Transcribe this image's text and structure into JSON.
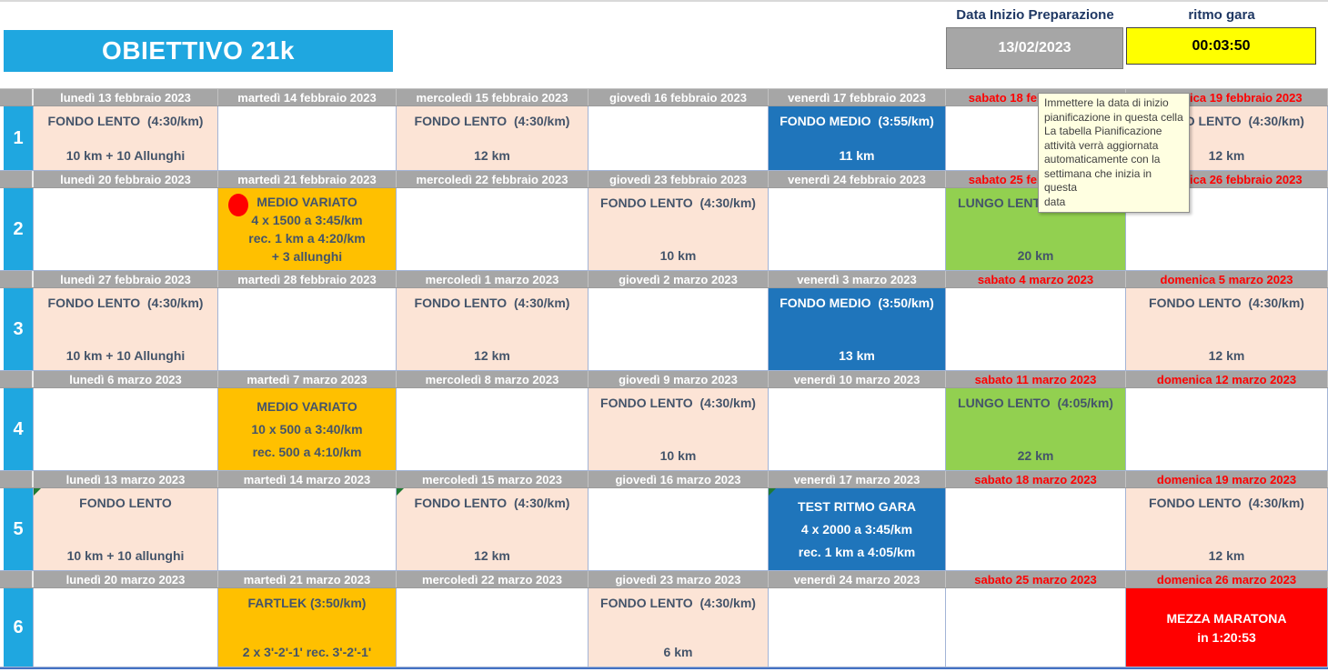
{
  "header": {
    "title": "OBIETTIVO 21k",
    "prep_date_label": "Data Inizio Preparazione",
    "prep_date_value": "13/02/2023",
    "race_pace_label": "ritmo gara",
    "race_pace_value": "00:03:50"
  },
  "tooltip_text": "Immettere la data di inizio\npianificazione in questa cella\nLa tabella Pianificazione\nattività verrà aggiornata\nautomaticamente con la\nsettimana che inizia in questa\ndata",
  "colors": {
    "accent_cyan": "#1FA7E0",
    "header_gray": "#A6A6A6",
    "weekend_red": "#FF0000",
    "fondo_lento_peach": "#FCE4D6",
    "fondo_medio_blue": "#1F75BB",
    "variato_orange": "#FFC000",
    "lungo_lento_green": "#92D050",
    "race_red": "#FF0000",
    "pace_yellow": "#FFFF00",
    "cell_text": "#44546A"
  },
  "weeks": [
    {
      "number": "1",
      "days": [
        "lunedì 13 febbraio 2023",
        "martedì 14 febbraio 2023",
        "mercoledì 15 febbraio 2023",
        "giovedì 16 febbraio 2023",
        "venerdì 17 febbraio 2023",
        "sabato 18 febbraio 2023",
        "domenica 19 febbraio 2023"
      ],
      "activities": [
        {
          "style": "peach",
          "lines": [
            "FONDO LENTO  (4:30/km)",
            "10 km + 10 Allunghi"
          ]
        },
        null,
        {
          "style": "peach",
          "lines": [
            "FONDO LENTO  (4:30/km)",
            "12 km"
          ]
        },
        null,
        {
          "style": "blue",
          "lines": [
            "FONDO MEDIO  (3:55/km)",
            "11 km"
          ]
        },
        null,
        {
          "style": "peach",
          "lines": [
            "FONDO LENTO  (4:30/km)",
            "12 km"
          ]
        }
      ]
    },
    {
      "number": "2",
      "days": [
        "lunedì 20 febbraio 2023",
        "martedì 21 febbraio 2023",
        "mercoledì 22 febbraio 2023",
        "giovedì 23 febbraio 2023",
        "venerdì 24 febbraio 2023",
        "sabato 25 febbraio 2023",
        "domenica 26 febbraio 2023"
      ],
      "activities": [
        null,
        {
          "style": "orange",
          "marker": "red-dot",
          "lines": [
            "MEDIO VARIATO",
            "4 x 1500 a 3:45/km",
            "rec. 1 km a 4:20/km",
            "+ 3 allunghi"
          ]
        },
        null,
        {
          "style": "peach",
          "lines": [
            "FONDO LENTO  (4:30/km)",
            "10 km"
          ]
        },
        null,
        {
          "style": "green",
          "lines": [
            "LUNGO LENTO  (4:10/km)",
            "20 km"
          ]
        },
        null
      ]
    },
    {
      "number": "3",
      "days": [
        "lunedì 27 febbraio 2023",
        "martedì 28 febbraio 2023",
        "mercoledì 1 marzo 2023",
        "giovedì 2 marzo 2023",
        "venerdì 3 marzo 2023",
        "sabato 4 marzo 2023",
        "domenica 5 marzo 2023"
      ],
      "activities": [
        {
          "style": "peach",
          "lines": [
            "FONDO LENTO  (4:30/km)",
            "10 km + 10 Allunghi"
          ]
        },
        null,
        {
          "style": "peach",
          "lines": [
            "FONDO LENTO  (4:30/km)",
            "12 km"
          ]
        },
        null,
        {
          "style": "blue",
          "lines": [
            "FONDO MEDIO  (3:50/km)",
            "13 km"
          ]
        },
        null,
        {
          "style": "peach",
          "lines": [
            "FONDO LENTO  (4:30/km)",
            "12 km"
          ]
        }
      ]
    },
    {
      "number": "4",
      "days": [
        "lunedì 6 marzo 2023",
        "martedì 7 marzo 2023",
        "mercoledì 8 marzo 2023",
        "giovedì 9 marzo 2023",
        "venerdì 10 marzo 2023",
        "sabato 11 marzo 2023",
        "domenica 12 marzo 2023"
      ],
      "activities": [
        null,
        {
          "style": "orange",
          "lines": [
            "MEDIO VARIATO",
            "10 x 500 a 3:40/km",
            "rec. 500 a 4:10/km"
          ]
        },
        null,
        {
          "style": "peach",
          "lines": [
            "FONDO LENTO  (4:30/km)",
            "10 km"
          ]
        },
        null,
        {
          "style": "green",
          "lines": [
            "LUNGO LENTO  (4:05/km)",
            "22 km"
          ]
        },
        null
      ]
    },
    {
      "number": "5",
      "days": [
        "lunedì 13 marzo 2023",
        "martedì 14 marzo 2023",
        "mercoledì 15 marzo 2023",
        "giovedì 16 marzo 2023",
        "venerdì 17 marzo 2023",
        "sabato 18 marzo 2023",
        "domenica 19 marzo 2023"
      ],
      "activities": [
        {
          "style": "peach",
          "marker": "green-flag",
          "lines": [
            "FONDO LENTO",
            "10 km + 10 allunghi"
          ]
        },
        null,
        {
          "style": "peach",
          "marker": "green-flag",
          "lines": [
            "FONDO LENTO  (4:30/km)",
            "12 km"
          ]
        },
        null,
        {
          "style": "blue",
          "marker": "green-flag",
          "lines": [
            "TEST RITMO GARA",
            "4 x 2000 a 3:45/km",
            "rec. 1 km a 4:05/km"
          ]
        },
        null,
        {
          "style": "peach",
          "lines": [
            "FONDO LENTO  (4:30/km)",
            "12 km"
          ]
        }
      ]
    },
    {
      "number": "6",
      "days": [
        "lunedì 20 marzo 2023",
        "martedì 21 marzo 2023",
        "mercoledì 22 marzo 2023",
        "giovedì 23 marzo 2023",
        "venerdì 24 marzo 2023",
        "sabato 25 marzo 2023",
        "domenica 26 marzo 2023"
      ],
      "activities": [
        null,
        {
          "style": "orange",
          "lines": [
            "FARTLEK (3:50/km)",
            "2 x 3'-2'-1' rec. 3'-2'-1'"
          ]
        },
        null,
        {
          "style": "peach",
          "lines": [
            "FONDO LENTO  (4:30/km)",
            "6 km"
          ]
        },
        null,
        null,
        {
          "style": "red",
          "lines": [
            "MEZZA MARATONA",
            "in 1:20:53"
          ]
        }
      ]
    }
  ]
}
